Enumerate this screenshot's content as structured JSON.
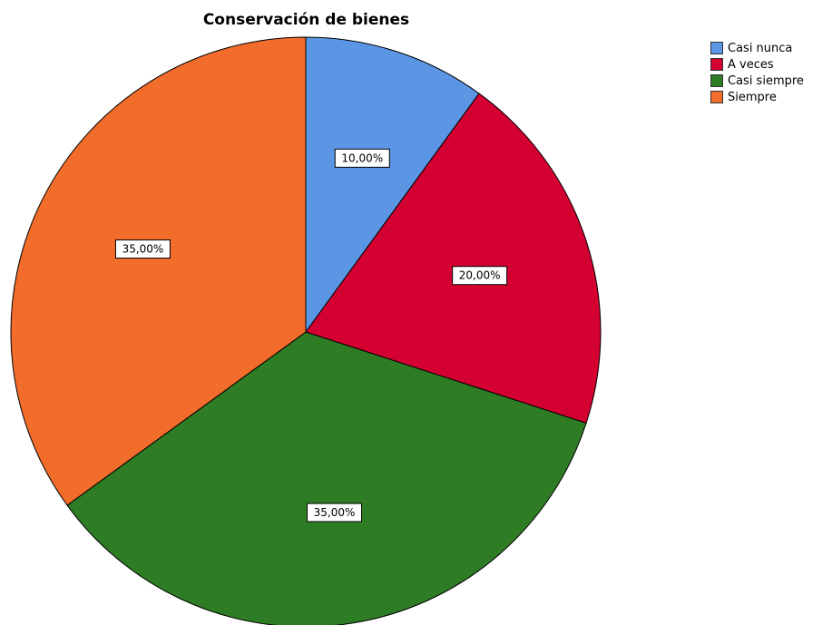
{
  "chart_data": {
    "type": "pie",
    "title": "Conservación de bienes",
    "categories": [
      "Casi nunca",
      "A veces",
      "Casi siempre",
      "Siempre"
    ],
    "values": [
      10,
      20,
      35,
      35
    ],
    "labels": [
      "10,00%",
      "20,00%",
      "35,00%",
      "35,00%"
    ],
    "colors": [
      "#5b96e5",
      "#d40032",
      "#2e7d24",
      "#f26c2b"
    ],
    "start_angle": "12 o'clock",
    "direction": "clockwise",
    "legend": "top-right"
  }
}
